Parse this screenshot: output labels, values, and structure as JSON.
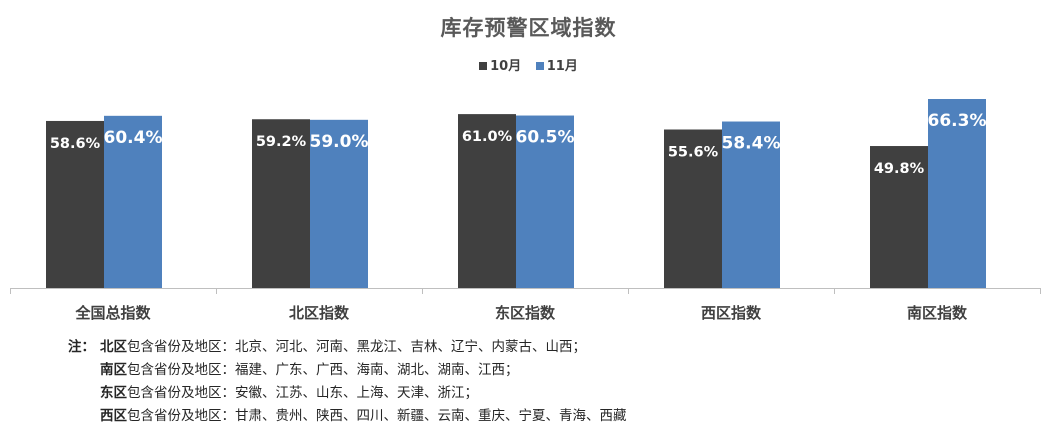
{
  "chart_data": {
    "type": "bar",
    "title": "库存预警区域指数",
    "categories": [
      "全国总指数",
      "北区指数",
      "东区指数",
      "西区指数",
      "南区指数"
    ],
    "series": [
      {
        "name": "10月",
        "values": [
          58.6,
          59.2,
          61.0,
          55.6,
          49.8
        ],
        "labels": [
          "58.6%",
          "59.2%",
          "61.0%",
          "55.6%",
          "49.8%"
        ]
      },
      {
        "name": "11月",
        "values": [
          60.4,
          59.0,
          60.5,
          58.4,
          66.3
        ],
        "labels": [
          "60.4%",
          "59.0%",
          "60.5%",
          "58.4%",
          "66.3%"
        ]
      }
    ],
    "unit": "%",
    "ylim": [
      0,
      70
    ],
    "grid": false,
    "legend": "top-center",
    "colors": [
      "#404040",
      "#4F81BD"
    ]
  },
  "notes": {
    "prefix": "注：",
    "items": [
      {
        "region": "北区",
        "text": "包含省份及地区：北京、河北、河南、黑龙江、吉林、辽宁、内蒙古、山西；"
      },
      {
        "region": "南区",
        "text": "包含省份及地区：福建、广东、广西、海南、湖北、湖南、江西；"
      },
      {
        "region": "东区",
        "text": "包含省份及地区：安徽、江苏、山东、上海、天津、浙江；"
      },
      {
        "region": "西区",
        "text": "包含省份及地区：甘肃、贵州、陕西、四川、新疆、云南、重庆、宁夏、青海、西藏"
      }
    ]
  }
}
